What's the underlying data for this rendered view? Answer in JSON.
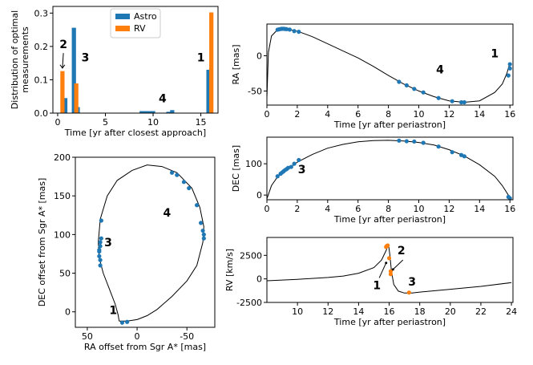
{
  "colors": {
    "astro": "#1f77b4",
    "rv": "#ff7f0e"
  },
  "chart_data": [
    {
      "id": "hist",
      "type": "bar",
      "xlabel": "Time [yr after closest approach]",
      "ylabel": "Distribution of optimal measurements",
      "xlim": [
        -0.5,
        16.8
      ],
      "ylim": [
        0,
        0.32
      ],
      "xticks": [
        0,
        5,
        10,
        15
      ],
      "yticks": [
        0.0,
        0.1,
        0.2,
        0.3
      ],
      "ytick_labels": [
        "0.0",
        "0.1",
        "0.2",
        "0.3"
      ],
      "bar_width": 0.22,
      "legend": {
        "position": "top-center",
        "entries": [
          "Astro",
          "RV"
        ]
      },
      "series": [
        {
          "name": "Astro",
          "x": [
            0.8,
            1.7,
            2.1,
            8.8,
            9.2,
            9.6,
            10.0,
            11.6,
            12.0,
            15.8
          ],
          "values": [
            0.045,
            0.256,
            0.018,
            0.006,
            0.006,
            0.006,
            0.006,
            0.004,
            0.009,
            0.13
          ]
        },
        {
          "name": "RV",
          "x": [
            0.5,
            1.95,
            16.1
          ],
          "values": [
            0.126,
            0.089,
            0.302
          ]
        }
      ],
      "annotations": [
        {
          "text": "2",
          "x": 0.6,
          "y": 0.195
        },
        {
          "text": "3",
          "x": 2.9,
          "y": 0.155
        },
        {
          "text": "4",
          "x": 11.0,
          "y": 0.033
        },
        {
          "text": "1",
          "x": 15.0,
          "y": 0.155
        }
      ]
    },
    {
      "id": "ra",
      "type": "line",
      "xlabel": "Time [yr after periastron]",
      "ylabel": "RA [mas]",
      "xlim": [
        0,
        16.2
      ],
      "ylim": [
        -70,
        45
      ],
      "xticks": [
        0,
        2,
        4,
        6,
        8,
        10,
        12,
        14,
        16
      ],
      "yticks": [
        -50,
        0
      ],
      "curve": [
        [
          0,
          -60
        ],
        [
          0.1,
          5
        ],
        [
          0.3,
          28
        ],
        [
          0.7,
          37
        ],
        [
          1.0,
          38.5
        ],
        [
          1.5,
          37
        ],
        [
          2.0,
          35
        ],
        [
          3.0,
          27
        ],
        [
          4.0,
          17
        ],
        [
          5.0,
          7
        ],
        [
          6.0,
          -3
        ],
        [
          7.0,
          -15
        ],
        [
          8.0,
          -28
        ],
        [
          9.0,
          -40
        ],
        [
          10.0,
          -50
        ],
        [
          11.0,
          -58
        ],
        [
          12.0,
          -64
        ],
        [
          13.0,
          -66
        ],
        [
          14.0,
          -64
        ],
        [
          15.0,
          -52
        ],
        [
          15.5,
          -40
        ],
        [
          15.8,
          -25
        ],
        [
          16.0,
          -10
        ]
      ],
      "points": [
        [
          0.7,
          37
        ],
        [
          0.8,
          37.5
        ],
        [
          0.9,
          38
        ],
        [
          1.0,
          38.3
        ],
        [
          1.1,
          38.3
        ],
        [
          1.2,
          38
        ],
        [
          1.3,
          37.8
        ],
        [
          1.5,
          37.2
        ],
        [
          1.8,
          35
        ],
        [
          2.1,
          34
        ],
        [
          8.7,
          -37
        ],
        [
          9.2,
          -42
        ],
        [
          9.7,
          -47
        ],
        [
          10.3,
          -52
        ],
        [
          11.3,
          -60
        ],
        [
          12.2,
          -64.5
        ],
        [
          12.8,
          -66
        ],
        [
          13.0,
          -66
        ],
        [
          15.9,
          -28
        ],
        [
          16.0,
          -18
        ],
        [
          16.0,
          -12
        ]
      ],
      "annotations": [
        {
          "text": "4",
          "x": 11.4,
          "y": -25
        },
        {
          "text": "1",
          "x": 15.0,
          "y": -2
        }
      ]
    },
    {
      "id": "dec",
      "type": "line",
      "xlabel": "Time [yr after periastron]",
      "ylabel": "DEC [mas]",
      "xlim": [
        0,
        16.2
      ],
      "ylim": [
        -15,
        185
      ],
      "xticks": [
        0,
        2,
        4,
        6,
        8,
        10,
        12,
        14,
        16
      ],
      "yticks": [
        0,
        100
      ],
      "curve": [
        [
          0,
          -12
        ],
        [
          0.3,
          30
        ],
        [
          0.7,
          58
        ],
        [
          1.0,
          72
        ],
        [
          1.5,
          88
        ],
        [
          2.0,
          105
        ],
        [
          3.0,
          130
        ],
        [
          4.0,
          150
        ],
        [
          5.0,
          162
        ],
        [
          6.0,
          170
        ],
        [
          7.0,
          174
        ],
        [
          8.0,
          175
        ],
        [
          9.0,
          173
        ],
        [
          10.0,
          168
        ],
        [
          11.0,
          160
        ],
        [
          12.0,
          145
        ],
        [
          13.0,
          125
        ],
        [
          14.0,
          97
        ],
        [
          15.0,
          60
        ],
        [
          15.5,
          30
        ],
        [
          16.0,
          -8
        ]
      ],
      "points": [
        [
          0.7,
          60
        ],
        [
          0.9,
          68
        ],
        [
          1.0,
          72
        ],
        [
          1.1,
          76
        ],
        [
          1.2,
          80
        ],
        [
          1.3,
          83
        ],
        [
          1.4,
          87
        ],
        [
          1.6,
          90
        ],
        [
          1.8,
          100
        ],
        [
          2.1,
          112
        ],
        [
          8.7,
          174
        ],
        [
          9.2,
          172
        ],
        [
          9.7,
          171
        ],
        [
          10.3,
          167
        ],
        [
          11.3,
          155
        ],
        [
          12.2,
          137
        ],
        [
          12.8,
          128
        ],
        [
          13.0,
          124
        ],
        [
          15.9,
          -6
        ],
        [
          16.0,
          -10
        ]
      ],
      "annotations": [
        {
          "text": "3",
          "x": 2.3,
          "y": 70
        }
      ]
    },
    {
      "id": "sky",
      "type": "scatter",
      "xlabel": "RA offset from Sgr A* [mas]",
      "ylabel": "DEC offset from Sgr A* [mas]",
      "xlim": [
        62,
        -78
      ],
      "ylim": [
        -20,
        200
      ],
      "xticks": [
        50,
        0,
        -50
      ],
      "yticks": [
        0,
        50,
        100,
        150,
        200
      ],
      "curve": [
        [
          18,
          -12
        ],
        [
          10,
          -12
        ],
        [
          0,
          -10
        ],
        [
          -10,
          -5
        ],
        [
          -20,
          3
        ],
        [
          -35,
          20
        ],
        [
          -50,
          40
        ],
        [
          -60,
          60
        ],
        [
          -66,
          90
        ],
        [
          -67,
          110
        ],
        [
          -63,
          135
        ],
        [
          -55,
          160
        ],
        [
          -40,
          180
        ],
        [
          -25,
          188
        ],
        [
          -10,
          190
        ],
        [
          5,
          183
        ],
        [
          20,
          170
        ],
        [
          30,
          150
        ],
        [
          37,
          120
        ],
        [
          39,
          90
        ],
        [
          38,
          70
        ],
        [
          34,
          50
        ],
        [
          28,
          30
        ],
        [
          22,
          10
        ],
        [
          19,
          -4
        ],
        [
          18,
          -12
        ]
      ],
      "points": [
        [
          38,
          80
        ],
        [
          37,
          85
        ],
        [
          38,
          78
        ],
        [
          37,
          90
        ],
        [
          36,
          95
        ],
        [
          38,
          72
        ],
        [
          37,
          67
        ],
        [
          36,
          118
        ],
        [
          37,
          60
        ],
        [
          -35,
          180
        ],
        [
          -40,
          177
        ],
        [
          -47,
          168
        ],
        [
          -52,
          160
        ],
        [
          -60,
          138
        ],
        [
          -64,
          115
        ],
        [
          -66,
          105
        ],
        [
          -67,
          100
        ],
        [
          -67,
          95
        ],
        [
          15,
          -14
        ],
        [
          10,
          -13
        ]
      ],
      "annotations": [
        {
          "text": "3",
          "x": 29,
          "y": 85
        },
        {
          "text": "4",
          "x": -30,
          "y": 123
        },
        {
          "text": "1",
          "x": 24,
          "y": -3
        }
      ]
    },
    {
      "id": "rv",
      "type": "line",
      "xlabel": "Time [yr after periastron]",
      "ylabel": "RV [km/s]",
      "xlim": [
        8,
        24.1
      ],
      "ylim": [
        -2500,
        4400
      ],
      "xticks": [
        10,
        12,
        14,
        16,
        18,
        20,
        22,
        24
      ],
      "yticks": [
        -2500,
        0,
        2500
      ],
      "curve": [
        [
          8,
          -200
        ],
        [
          10,
          -50
        ],
        [
          12,
          150
        ],
        [
          13,
          300
        ],
        [
          14,
          600
        ],
        [
          15,
          1200
        ],
        [
          15.5,
          2000
        ],
        [
          15.8,
          3000
        ],
        [
          15.95,
          3700
        ],
        [
          16.05,
          2500
        ],
        [
          16.15,
          800
        ],
        [
          16.3,
          -600
        ],
        [
          16.6,
          -1300
        ],
        [
          17.0,
          -1500
        ],
        [
          17.5,
          -1500
        ],
        [
          18,
          -1400
        ],
        [
          20,
          -1100
        ],
        [
          22,
          -800
        ],
        [
          24,
          -400
        ]
      ],
      "points": [
        [
          15.8,
          3400
        ],
        [
          15.85,
          3500
        ],
        [
          15.9,
          3550
        ],
        [
          16.0,
          2200
        ],
        [
          16.1,
          800
        ],
        [
          16.1,
          500
        ],
        [
          17.3,
          -1450
        ]
      ],
      "annotations": [
        {
          "text": "2",
          "x": 16.8,
          "y": 2600
        },
        {
          "text": "1",
          "x": 15.2,
          "y": -1100
        },
        {
          "text": "3",
          "x": 17.5,
          "y": -700
        }
      ]
    }
  ]
}
